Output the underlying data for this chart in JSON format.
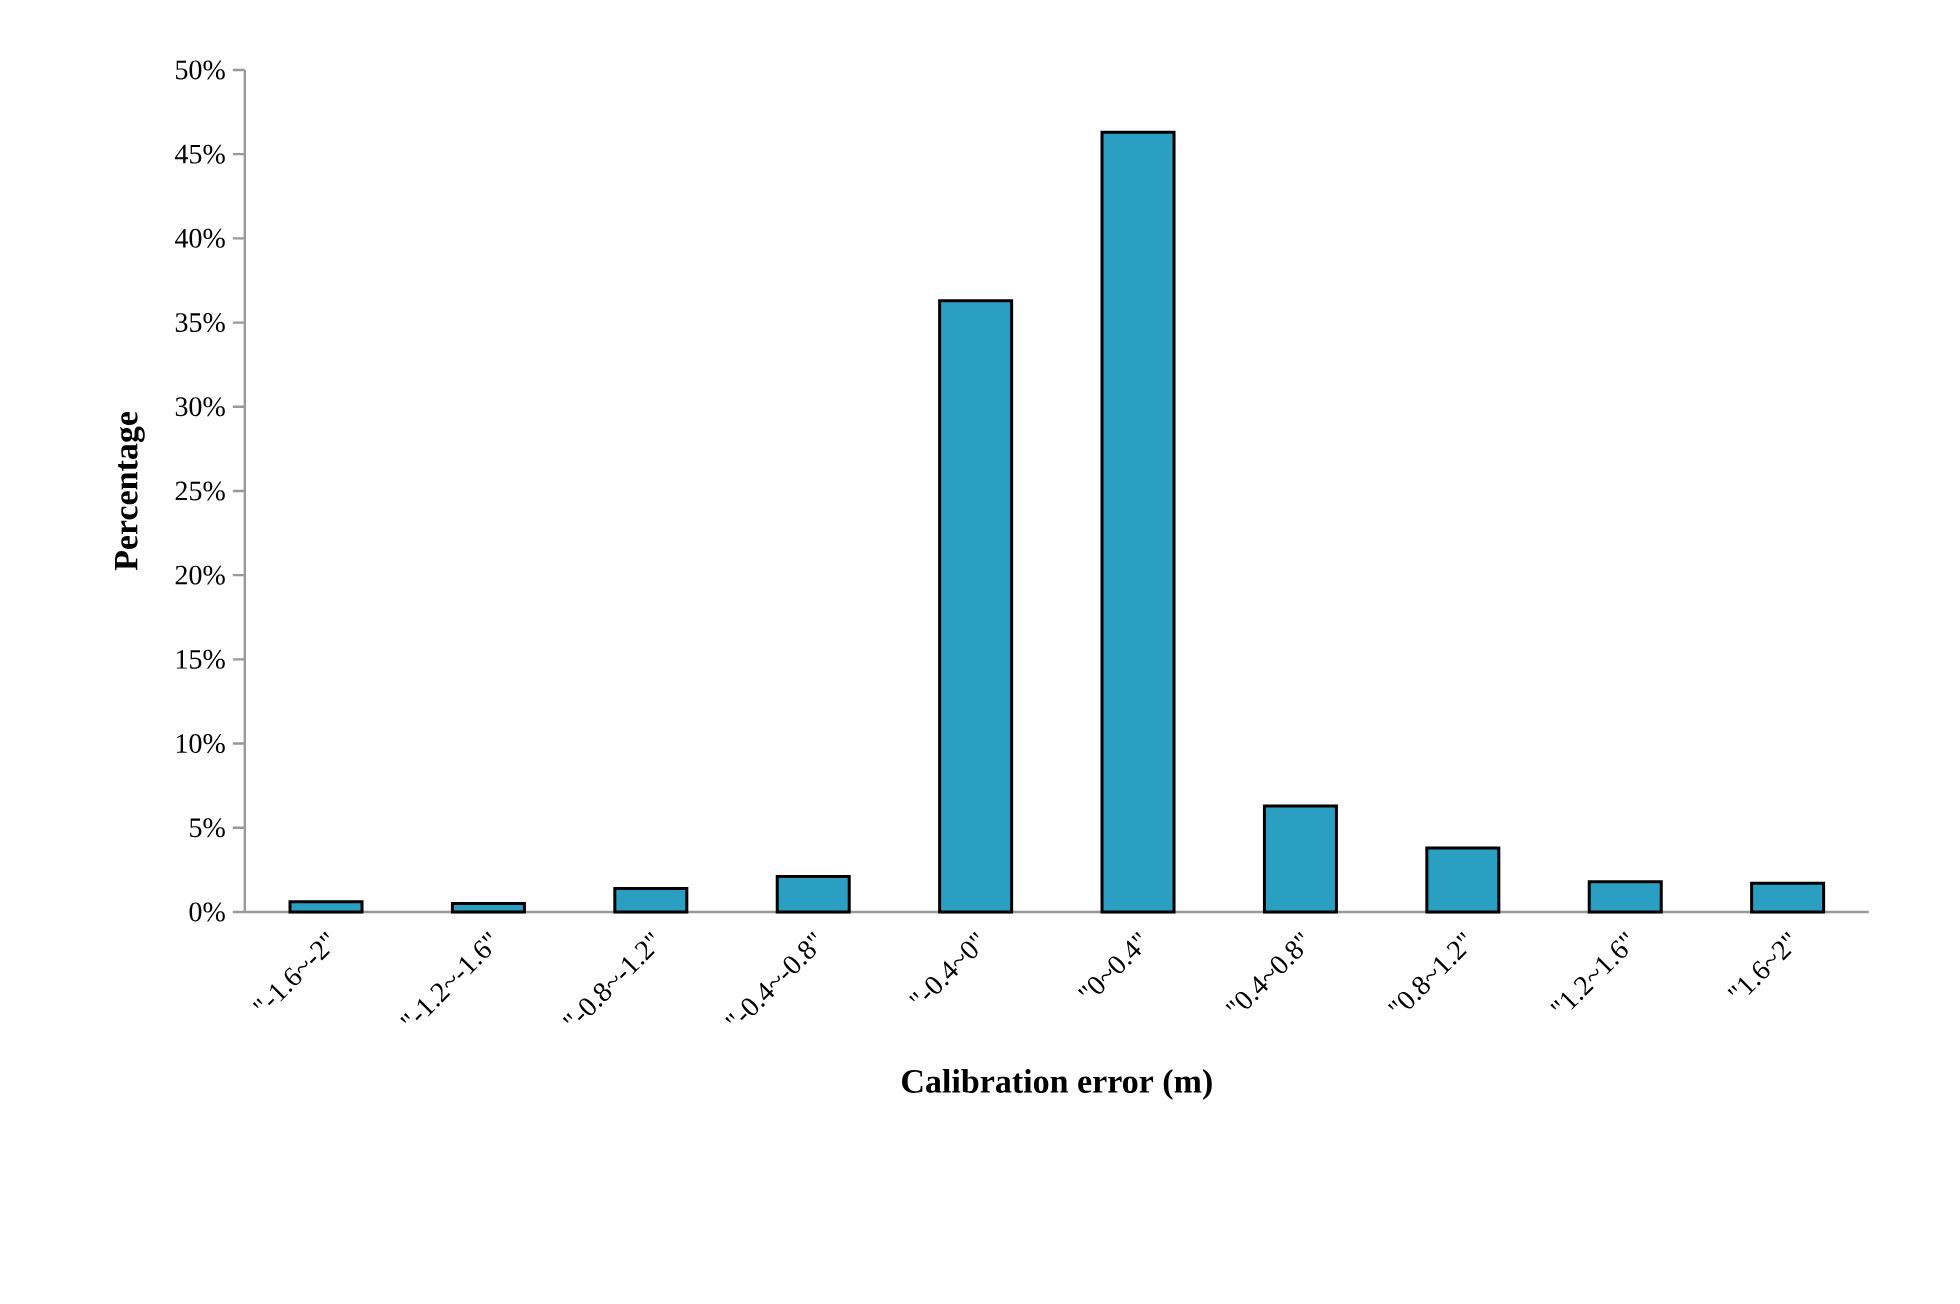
{
  "chart_data": {
    "type": "bar",
    "xlabel": "Calibration error (m)",
    "ylabel": "Percentage",
    "categories": [
      "\"-1.6~-2\"",
      "\"-1.2~-1.6\"",
      "\"-0.8~-1.2\"",
      "\"-0.4~-0.8\"",
      "\"-0.4~0\"",
      "\"0~0.4\"",
      "\"0.4~0.8\"",
      "\"0.8~1.2\"",
      "\"1.2~1.6\"",
      "\"1.6~2\""
    ],
    "values": [
      0.6,
      0.5,
      1.4,
      2.1,
      36.3,
      46.3,
      6.3,
      3.8,
      1.8,
      1.7
    ],
    "color": "#2a9fc2",
    "ylim": [
      0,
      50
    ],
    "yticks": [
      {
        "value": 0,
        "label": "0%"
      },
      {
        "value": 5,
        "label": "5%"
      },
      {
        "value": 10,
        "label": "10%"
      },
      {
        "value": 15,
        "label": "15%"
      },
      {
        "value": 20,
        "label": "20%"
      },
      {
        "value": 25,
        "label": "25%"
      },
      {
        "value": 30,
        "label": "30%"
      },
      {
        "value": 35,
        "label": "35%"
      },
      {
        "value": 40,
        "label": "40%"
      },
      {
        "value": 45,
        "label": "45%"
      },
      {
        "value": 50,
        "label": "50%"
      }
    ],
    "grid": false
  }
}
